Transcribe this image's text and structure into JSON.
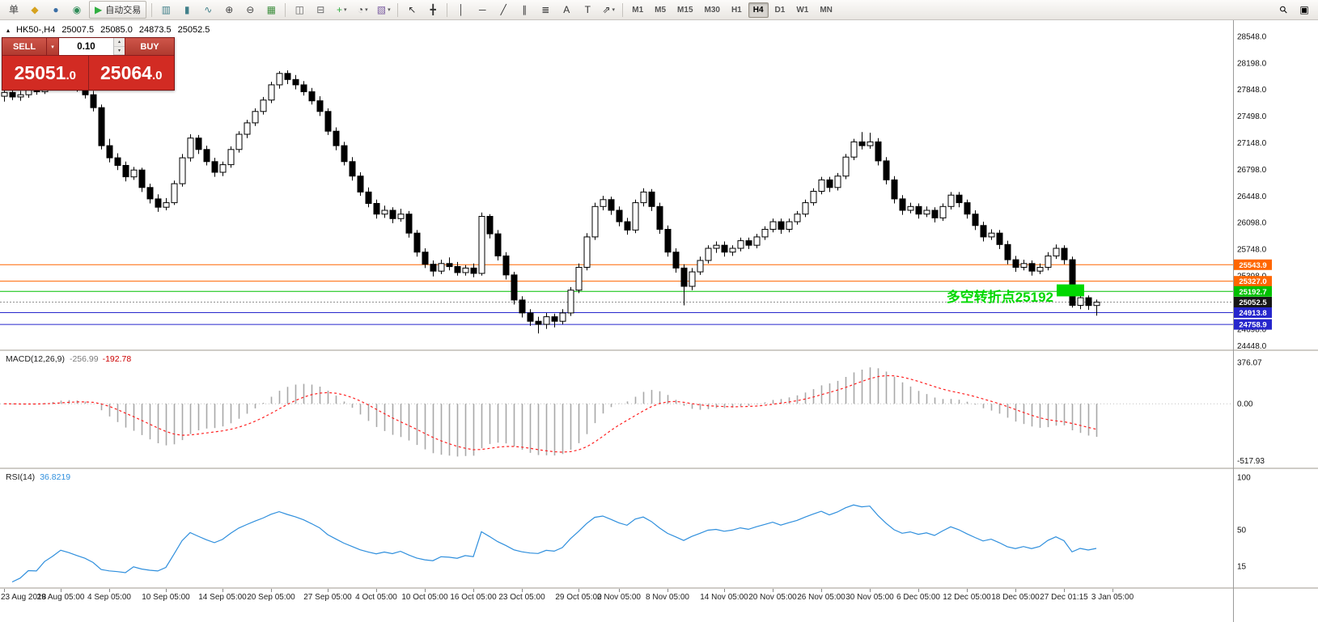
{
  "icons": {
    "caret_down": "▾",
    "spin_up": "▴",
    "spin_down": "▾",
    "chart_marker": "▴"
  },
  "toolbar": {
    "left_items": [
      {
        "name": "order-list",
        "glyph": "单",
        "color": "#444"
      },
      {
        "name": "new-order",
        "glyph": "◆",
        "color": "#d6a21e"
      },
      {
        "name": "charts-window",
        "glyph": "●",
        "color": "#3a6ea5"
      },
      {
        "name": "metaeditor",
        "glyph": "◉",
        "color": "#2e8b57"
      },
      {
        "name": "auto-trading-button",
        "type": "labeled",
        "glyph": "▶",
        "glyph_color": "#2fae3f",
        "label": "自动交易"
      },
      {
        "type": "sep"
      },
      {
        "name": "bar-chart-mode",
        "glyph": "▥",
        "color": "#41808a"
      },
      {
        "name": "candlestick-mode",
        "glyph": "▮",
        "color": "#41808a"
      },
      {
        "name": "line-chart-mode",
        "glyph": "∿",
        "color": "#41808a"
      },
      {
        "name": "zoom-in-button",
        "glyph": "⊕",
        "color": "#444"
      },
      {
        "name": "zoom-out-button",
        "glyph": "⊖",
        "color": "#444"
      },
      {
        "name": "tile-windows",
        "glyph": "▦",
        "color": "#3f8f3f"
      },
      {
        "type": "sep"
      },
      {
        "name": "cascade-windows",
        "glyph": "◫",
        "color": "#666"
      },
      {
        "name": "arrange-windows",
        "glyph": "⊟",
        "color": "#666"
      },
      {
        "name": "indicators-add",
        "glyph": "+",
        "color": "#2fae3f",
        "caret": true
      },
      {
        "name": "periods-menu",
        "glyph": "◔",
        "color": "#444",
        "caret": true
      },
      {
        "name": "templates-menu",
        "glyph": "▧",
        "color": "#7a5ca0",
        "caret": true
      },
      {
        "type": "sep"
      },
      {
        "name": "cursor-tool",
        "glyph": "↖",
        "color": "#333"
      },
      {
        "name": "crosshair-tool",
        "glyph": "╋",
        "color": "#333"
      },
      {
        "type": "sep"
      },
      {
        "name": "vertical-line-tool",
        "glyph": "│",
        "color": "#333"
      },
      {
        "name": "horizontal-line-tool",
        "glyph": "─",
        "color": "#333"
      },
      {
        "name": "trendline-tool",
        "glyph": "╱",
        "color": "#333"
      },
      {
        "name": "channel-tool",
        "glyph": "∥",
        "color": "#333"
      },
      {
        "name": "fibonacci-tool",
        "glyph": "≣",
        "color": "#333"
      },
      {
        "name": "text-tool",
        "glyph": "A",
        "color": "#333"
      },
      {
        "name": "label-tool",
        "glyph": "T",
        "color": "#333"
      },
      {
        "name": "arrows-tool",
        "glyph": "⇗",
        "color": "#333",
        "caret": true
      },
      {
        "type": "sep"
      }
    ],
    "timeframes": {
      "items": [
        "M1",
        "M5",
        "M15",
        "M30",
        "H1",
        "H4",
        "D1",
        "W1",
        "MN"
      ],
      "active": "H4"
    },
    "right_items": [
      {
        "name": "symbol-search",
        "glyph": "⚲",
        "rotate": true
      },
      {
        "name": "window-box",
        "glyph": "▣"
      }
    ]
  },
  "chart_header": {
    "marker_glyph": "▴",
    "symbol": "HK50-,H4",
    "open": "25007.5",
    "high": "25085.0",
    "low": "24873.5",
    "close": "25052.5"
  },
  "trade_panel": {
    "sell_label": "SELL",
    "buy_label": "BUY",
    "volume": "0.10",
    "sell_price_int": "25051",
    "sell_price_dec": ".0",
    "buy_price_int": "25064",
    "buy_price_dec": ".0"
  },
  "chart_data": [
    {
      "type": "candlestick",
      "symbol": "HK50-",
      "timeframe": "H4",
      "ylim": [
        24430,
        28760
      ],
      "y_ticks": [
        "28548.0",
        "28198.0",
        "27848.0",
        "27498.0",
        "27148.0",
        "26798.0",
        "26448.0",
        "26098.0",
        "25748.0",
        "25398.0",
        "25048.0",
        "24698.0",
        "24448.0"
      ],
      "levels": [
        {
          "price": 25543.9,
          "color": "#ff6600",
          "style": "solid"
        },
        {
          "price": 25327.0,
          "color": "#ff6600",
          "style": "solid"
        },
        {
          "price": 25192.7,
          "color": "#00c000",
          "style": "solid"
        },
        {
          "price": 25052.5,
          "color": "#909090",
          "style": "dotted",
          "tag_color": "#161616"
        },
        {
          "price": 24913.8,
          "color": "#2626cc",
          "style": "solid"
        },
        {
          "price": 24758.9,
          "color": "#2626cc",
          "style": "solid"
        }
      ],
      "annotation": {
        "text": "多空转折点25192",
        "color": "#00d800",
        "x": 1302,
        "price": 25120,
        "box": {
          "x": 1306,
          "w": 34,
          "price_top": 25285,
          "price_bottom": 25128
        }
      },
      "x_labels": [
        {
          "i": 0,
          "label": "23 Aug 2018"
        },
        {
          "i": 7,
          "label": "29 Aug 05:00"
        },
        {
          "i": 13,
          "label": "4 Sep 05:00"
        },
        {
          "i": 20,
          "label": "10 Sep 05:00"
        },
        {
          "i": 27,
          "label": "14 Sep 05:00"
        },
        {
          "i": 33,
          "label": "20 Sep 05:00"
        },
        {
          "i": 40,
          "label": "27 Sep 05:00"
        },
        {
          "i": 46,
          "label": "4 Oct 05:00"
        },
        {
          "i": 52,
          "label": "10 Oct 05:00"
        },
        {
          "i": 58,
          "label": "16 Oct 05:00"
        },
        {
          "i": 64,
          "label": "23 Oct 05:00"
        },
        {
          "i": 71,
          "label": "29 Oct 05:00"
        },
        {
          "i": 76,
          "label": "2 Nov 05:00"
        },
        {
          "i": 82,
          "label": "8 Nov 05:00"
        },
        {
          "i": 89,
          "label": "14 Nov 05:00"
        },
        {
          "i": 95,
          "label": "20 Nov 05:00"
        },
        {
          "i": 101,
          "label": "26 Nov 05:00"
        },
        {
          "i": 107,
          "label": "30 Nov 05:00"
        },
        {
          "i": 113,
          "label": "6 Dec 05:00"
        },
        {
          "i": 119,
          "label": "12 Dec 05:00"
        },
        {
          "i": 125,
          "label": "18 Dec 05:00"
        },
        {
          "i": 131,
          "label": "27 Dec 01:15"
        },
        {
          "i": 137,
          "label": "3 Jan 05:00"
        }
      ],
      "ohlc": [
        [
          27760,
          27870,
          27690,
          27810
        ],
        [
          27810,
          27860,
          27710,
          27750
        ],
        [
          27750,
          27830,
          27700,
          27780
        ],
        [
          27780,
          27880,
          27740,
          27840
        ],
        [
          27840,
          27910,
          27780,
          27820
        ],
        [
          27820,
          27950,
          27790,
          27900
        ],
        [
          27900,
          27990,
          27840,
          27950
        ],
        [
          27950,
          28060,
          27900,
          28010
        ],
        [
          28010,
          28070,
          27890,
          27950
        ],
        [
          27950,
          28000,
          27820,
          27870
        ],
        [
          27870,
          27920,
          27730,
          27780
        ],
        [
          27780,
          27830,
          27560,
          27610
        ],
        [
          27610,
          27650,
          27060,
          27110
        ],
        [
          27110,
          27200,
          26890,
          26950
        ],
        [
          26950,
          27010,
          26790,
          26850
        ],
        [
          26850,
          26900,
          26640,
          26700
        ],
        [
          26700,
          26830,
          26660,
          26790
        ],
        [
          26790,
          26820,
          26500,
          26560
        ],
        [
          26560,
          26610,
          26350,
          26410
        ],
        [
          26410,
          26470,
          26240,
          26300
        ],
        [
          26300,
          26420,
          26260,
          26360
        ],
        [
          26360,
          26650,
          26330,
          26610
        ],
        [
          26610,
          27000,
          26570,
          26950
        ],
        [
          26950,
          27260,
          26900,
          27210
        ],
        [
          27210,
          27250,
          27000,
          27060
        ],
        [
          27060,
          27110,
          26850,
          26900
        ],
        [
          26900,
          26950,
          26700,
          26760
        ],
        [
          26760,
          26900,
          26710,
          26860
        ],
        [
          26860,
          27100,
          26820,
          27060
        ],
        [
          27060,
          27300,
          27020,
          27260
        ],
        [
          27260,
          27450,
          27210,
          27410
        ],
        [
          27410,
          27600,
          27370,
          27560
        ],
        [
          27560,
          27750,
          27520,
          27710
        ],
        [
          27710,
          27950,
          27670,
          27910
        ],
        [
          27910,
          28090,
          27860,
          28060
        ],
        [
          28060,
          28100,
          27920,
          27980
        ],
        [
          27980,
          28040,
          27850,
          27910
        ],
        [
          27910,
          27960,
          27770,
          27820
        ],
        [
          27820,
          27870,
          27650,
          27700
        ],
        [
          27700,
          27760,
          27500,
          27560
        ],
        [
          27560,
          27600,
          27250,
          27300
        ],
        [
          27300,
          27350,
          27050,
          27110
        ],
        [
          27110,
          27160,
          26850,
          26900
        ],
        [
          26900,
          26960,
          26650,
          26710
        ],
        [
          26710,
          26760,
          26450,
          26500
        ],
        [
          26500,
          26560,
          26300,
          26350
        ],
        [
          26350,
          26400,
          26150,
          26210
        ],
        [
          26210,
          26320,
          26160,
          26260
        ],
        [
          26260,
          26300,
          26090,
          26150
        ],
        [
          26150,
          26280,
          26110,
          26210
        ],
        [
          26210,
          26250,
          25900,
          25960
        ],
        [
          25960,
          26000,
          25650,
          25710
        ],
        [
          25710,
          25760,
          25500,
          25550
        ],
        [
          25550,
          25600,
          25390,
          25460
        ],
        [
          25460,
          25610,
          25420,
          25560
        ],
        [
          25560,
          25640,
          25470,
          25520
        ],
        [
          25520,
          25580,
          25400,
          25440
        ],
        [
          25440,
          25540,
          25400,
          25500
        ],
        [
          25500,
          25560,
          25380,
          25430
        ],
        [
          25430,
          26230,
          25400,
          26180
        ],
        [
          26180,
          26210,
          25890,
          25950
        ],
        [
          25950,
          26000,
          25600,
          25660
        ],
        [
          25660,
          25710,
          25350,
          25410
        ],
        [
          25410,
          25450,
          25020,
          25080
        ],
        [
          25080,
          25130,
          24850,
          24910
        ],
        [
          24910,
          24960,
          24740,
          24800
        ],
        [
          24800,
          24860,
          24640,
          24760
        ],
        [
          24760,
          24910,
          24700,
          24860
        ],
        [
          24860,
          24900,
          24720,
          24800
        ],
        [
          24800,
          24960,
          24760,
          24910
        ],
        [
          24910,
          25250,
          24870,
          25210
        ],
        [
          25210,
          25560,
          25170,
          25510
        ],
        [
          25510,
          25960,
          25470,
          25910
        ],
        [
          25910,
          26360,
          25870,
          26310
        ],
        [
          26310,
          26450,
          26260,
          26400
        ],
        [
          26400,
          26440,
          26200,
          26260
        ],
        [
          26260,
          26310,
          26050,
          26110
        ],
        [
          26110,
          26160,
          25940,
          26000
        ],
        [
          26000,
          26400,
          25960,
          26360
        ],
        [
          26360,
          26550,
          26310,
          26500
        ],
        [
          26500,
          26540,
          26250,
          26310
        ],
        [
          26310,
          26360,
          25950,
          26010
        ],
        [
          26010,
          26060,
          25650,
          25710
        ],
        [
          25710,
          25760,
          25440,
          25500
        ],
        [
          25500,
          25550,
          25010,
          25260
        ],
        [
          25260,
          25500,
          25210,
          25450
        ],
        [
          25450,
          25650,
          25410,
          25600
        ],
        [
          25600,
          25800,
          25560,
          25760
        ],
        [
          25760,
          25850,
          25700,
          25800
        ],
        [
          25800,
          25850,
          25650,
          25710
        ],
        [
          25710,
          25800,
          25660,
          25760
        ],
        [
          25760,
          25900,
          25720,
          25860
        ],
        [
          25860,
          25900,
          25750,
          25800
        ],
        [
          25800,
          25950,
          25760,
          25910
        ],
        [
          25910,
          26050,
          25870,
          26010
        ],
        [
          26010,
          26150,
          25970,
          26110
        ],
        [
          26110,
          26150,
          25950,
          26010
        ],
        [
          26010,
          26150,
          25970,
          26110
        ],
        [
          26110,
          26250,
          26070,
          26210
        ],
        [
          26210,
          26400,
          26170,
          26360
        ],
        [
          26360,
          26550,
          26320,
          26510
        ],
        [
          26510,
          26700,
          26470,
          26660
        ],
        [
          26660,
          26700,
          26500,
          26560
        ],
        [
          26560,
          26750,
          26520,
          26710
        ],
        [
          26710,
          27000,
          26670,
          26960
        ],
        [
          26960,
          27200,
          26920,
          27160
        ],
        [
          27160,
          27290,
          27060,
          27110
        ],
        [
          27110,
          27280,
          27070,
          27160
        ],
        [
          27160,
          27210,
          26850,
          26910
        ],
        [
          26910,
          26960,
          26600,
          26660
        ],
        [
          26660,
          26710,
          26350,
          26410
        ],
        [
          26410,
          26460,
          26200,
          26260
        ],
        [
          26260,
          26360,
          26220,
          26310
        ],
        [
          26310,
          26350,
          26150,
          26210
        ],
        [
          26210,
          26310,
          26170,
          26260
        ],
        [
          26260,
          26300,
          26100,
          26160
        ],
        [
          26160,
          26350,
          26120,
          26310
        ],
        [
          26310,
          26500,
          26270,
          26460
        ],
        [
          26460,
          26500,
          26300,
          26360
        ],
        [
          26360,
          26400,
          26150,
          26210
        ],
        [
          26210,
          26260,
          26000,
          26060
        ],
        [
          26060,
          26110,
          25850,
          25910
        ],
        [
          25910,
          26010,
          25870,
          25960
        ],
        [
          25960,
          26000,
          25750,
          25810
        ],
        [
          25810,
          25860,
          25550,
          25610
        ],
        [
          25610,
          25660,
          25450,
          25510
        ],
        [
          25510,
          25610,
          25470,
          25560
        ],
        [
          25560,
          25600,
          25400,
          25460
        ],
        [
          25460,
          25560,
          25420,
          25510
        ],
        [
          25510,
          25710,
          25470,
          25660
        ],
        [
          25660,
          25810,
          25620,
          25760
        ],
        [
          25760,
          25800,
          25550,
          25610
        ],
        [
          25610,
          25650,
          24980,
          25010
        ],
        [
          25010,
          25160,
          24960,
          25110
        ],
        [
          25110,
          25140,
          24950,
          25007.5
        ],
        [
          25007.5,
          25085,
          24873.5,
          25052.5
        ]
      ]
    },
    {
      "type": "macd",
      "label": "MACD(12,26,9)",
      "macd_value": "-256.99",
      "signal_value": "-192.78",
      "y_ticks": [
        "376.07",
        "0.00",
        "-517.93"
      ],
      "histogram_color": "#a8a8a8",
      "signal_color": "#ff2020",
      "note": "histogram = EMA12-EMA26 of closes, signal = EMA9 of MACD, computed from ohlc"
    },
    {
      "type": "line",
      "label": "RSI(14)",
      "value": "36.8219",
      "y_ticks": [
        "100",
        "50",
        "15"
      ],
      "line_color": "#2f8fdd",
      "note": "RSI period 14 computed from ohlc closes"
    }
  ]
}
